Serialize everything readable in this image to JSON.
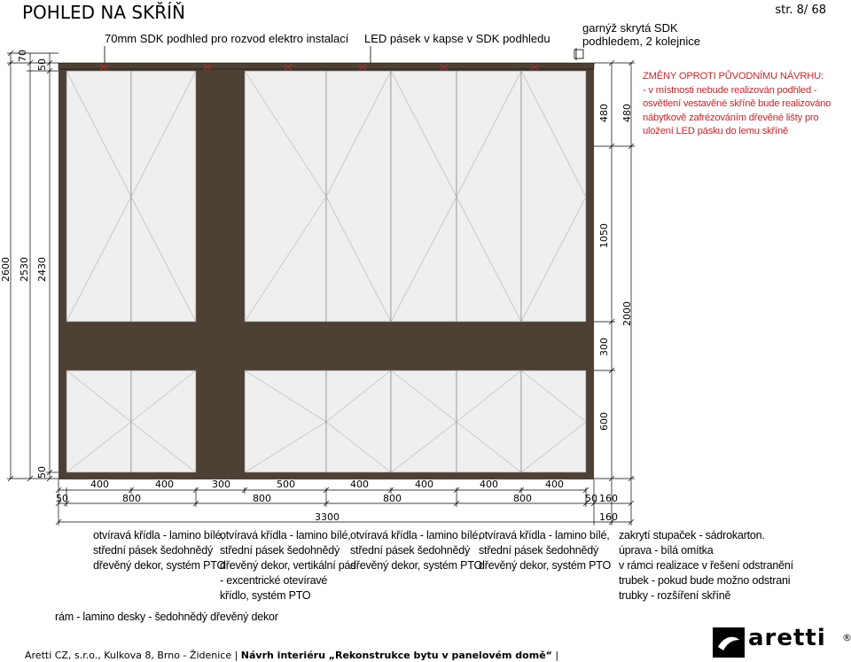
{
  "title": "POHLED NA SKŘÍŇ",
  "page_label": "str. 8/ 68",
  "top_labels": {
    "sdk": "70mm SDK podhled pro rozvod elektro instalací",
    "led": "LED pásek v kapse v SDK podhledu",
    "curtain": "garnýž skrytá SDK\npodhledem, 2 kolejnice"
  },
  "left_dims": {
    "d70": "70",
    "d50a": "50",
    "d2600": "2600",
    "d2530": "2530",
    "d2430": "2430",
    "d50b": "50"
  },
  "right_dims": {
    "d480a": "480",
    "d480b": "480",
    "d1050": "1050",
    "d2000": "2000",
    "d300": "300",
    "d600": "600"
  },
  "bottom_dims": {
    "row1": [
      "400",
      "400",
      "300",
      "500",
      "400",
      "400",
      "400",
      "400"
    ],
    "row2": [
      "50",
      "800",
      "800",
      "800",
      "800",
      "50",
      "160"
    ],
    "total": "3300",
    "side": "160"
  },
  "notes": {
    "change": "ZMĚNY OPROTI PŮVODNÍMU NÁVRHU:\n- v místnosti nebude realizován podhled -\nosvětlení vestavěné skříně bude realizováno\nnábytkově zafrézováním dřevěné lišty pro\nuložení LED pásku do lemu skříně",
    "door1": "otvíravá křídla - lamino bílé,\nstřední pásek šedohnědý\ndřevěný dekor, systém PTO",
    "door2": "otvíravá křídla - lamino bílé,\nstřední pásek šedohnědý\ndřevěný dekor, vertikální pás\n- excentrické otevíravé\nkřídlo, systém PTO",
    "door3": "otvíravá křídla - lamino bílé,\nstřední pásek šedohnědý\ndřevěný dekor, systém PTO",
    "door4": "otvíravá křídla - lamino bílé,\nstřední pásek šedohnědý\ndřevěný dekor, systém PTO",
    "side": "zakrytí stupaček - sádrokarton.\núprava - bílá omítka\nv rámci realizace v řešení odstranění\ntrubek - pokud bude možno odstrani\ntrubky - rozšíření skříně",
    "frame": "rám - lamino desky - šedohnědý dřevěný dekor"
  },
  "footer": {
    "company": "Aretti CZ, s.r.o.,  Kulkova 8, Brno - Židenice | ",
    "project": "Návrh interiéru „Rekonstrukce bytu v panelovém domě“",
    "tail": " |"
  },
  "logo": {
    "text": "aretti",
    "mark": "®"
  },
  "colors": {
    "frame": "#4d4034",
    "panel": "#efefef",
    "red": "#c0272d"
  }
}
